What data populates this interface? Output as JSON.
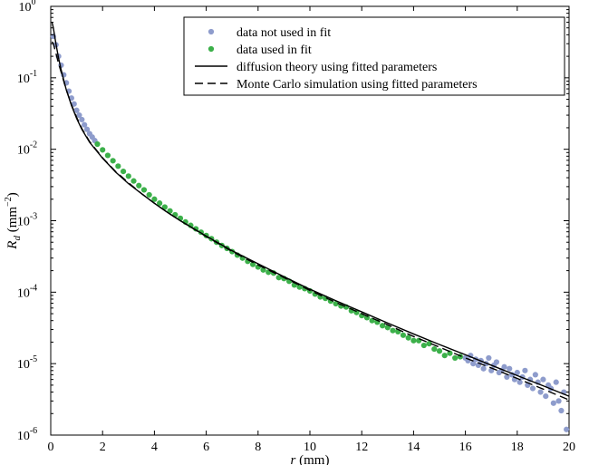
{
  "chart_data": {
    "type": "scatter",
    "title": "",
    "x_axis": {
      "label_var": "r",
      "label_unit": " (mm)",
      "min": 0,
      "max": 20,
      "ticks": [
        0,
        2,
        4,
        6,
        8,
        10,
        12,
        14,
        16,
        18,
        20
      ],
      "tick_labels": [
        "0",
        "2",
        "4",
        "6",
        "8",
        "10",
        "12",
        "14",
        "16",
        "18",
        "20"
      ]
    },
    "y_axis": {
      "label_var": "R",
      "label_sub": "d",
      "label_unit": " (mm",
      "label_exp": "−2",
      "label_close": ")",
      "scale": "log",
      "min": 1e-06,
      "max": 1,
      "tick_base": "10",
      "tick_exponents": [
        "0",
        "-1",
        "-2",
        "-3",
        "-4",
        "-5",
        "-6"
      ]
    },
    "legend": {
      "placement": "top-right",
      "entries": [
        "data not used in fit",
        "data used in fit",
        "diffusion theory using fitted parameters",
        "Monte Carlo simulation using fitted parameters"
      ]
    },
    "colors": {
      "not_used": "#8e9ccc",
      "used": "#3cb04a",
      "line": "#000000"
    },
    "series": [
      {
        "name": "data not used in fit",
        "style": "markers",
        "color": "#8e9ccc",
        "x": [
          0.1,
          0.2,
          0.3,
          0.4,
          0.5,
          0.6,
          0.7,
          0.8,
          0.9,
          1.0,
          1.1,
          1.2,
          1.3,
          1.4,
          1.5,
          1.6,
          1.7,
          16.0,
          16.1,
          16.2,
          16.3,
          16.4,
          16.5,
          16.6,
          16.7,
          16.8,
          16.9,
          17.0,
          17.1,
          17.2,
          17.3,
          17.4,
          17.5,
          17.6,
          17.7,
          17.8,
          17.9,
          18.0,
          18.1,
          18.2,
          18.3,
          18.4,
          18.5,
          18.6,
          18.7,
          18.8,
          18.9,
          19.0,
          19.1,
          19.2,
          19.3,
          19.4,
          19.5,
          19.6,
          19.7,
          19.8,
          19.9
        ],
        "y": [
          0.38,
          0.29,
          0.2,
          0.15,
          0.11,
          0.085,
          0.065,
          0.052,
          0.043,
          0.035,
          0.03,
          0.026,
          0.022,
          0.019,
          0.0165,
          0.0148,
          0.0132,
          1.2e-05,
          1.1e-05,
          1.3e-05,
          1e-05,
          1.15e-05,
          9.5e-06,
          1.1e-05,
          8.5e-06,
          1e-05,
          1.2e-05,
          8e-06,
          9.5e-06,
          1.05e-05,
          7.5e-06,
          8e-06,
          9e-06,
          6.5e-06,
          8.5e-06,
          7e-06,
          6e-06,
          7.5e-06,
          5.5e-06,
          6.5e-06,
          8e-06,
          5e-06,
          6e-06,
          4.5e-06,
          7e-06,
          5.5e-06,
          4e-06,
          6e-06,
          3.5e-06,
          5e-06,
          4.5e-06,
          2.8e-06,
          5.5e-06,
          3e-06,
          2.2e-06,
          4e-06,
          1.2e-06
        ]
      },
      {
        "name": "data used in fit",
        "style": "markers",
        "color": "#3cb04a",
        "x": [
          1.8,
          2.0,
          2.2,
          2.4,
          2.6,
          2.8,
          3.0,
          3.2,
          3.4,
          3.6,
          3.8,
          4.0,
          4.2,
          4.4,
          4.6,
          4.8,
          5.0,
          5.2,
          5.4,
          5.6,
          5.8,
          6.0,
          6.2,
          6.4,
          6.6,
          6.8,
          7.0,
          7.2,
          7.4,
          7.6,
          7.8,
          8.0,
          8.2,
          8.4,
          8.6,
          8.8,
          9.0,
          9.2,
          9.4,
          9.6,
          9.8,
          10.0,
          10.2,
          10.4,
          10.6,
          10.8,
          11.0,
          11.2,
          11.4,
          11.6,
          11.8,
          12.0,
          12.2,
          12.4,
          12.6,
          12.8,
          13.0,
          13.2,
          13.4,
          13.6,
          13.8,
          14.0,
          14.2,
          14.4,
          14.6,
          14.8,
          15.0,
          15.2,
          15.4,
          15.6,
          15.8
        ],
        "y": [
          0.0118,
          0.0098,
          0.0082,
          0.0069,
          0.0058,
          0.0049,
          0.0042,
          0.0036,
          0.0031,
          0.0027,
          0.0023,
          0.002,
          0.00176,
          0.00155,
          0.00137,
          0.00121,
          0.00108,
          0.00096,
          0.00086,
          0.00077,
          0.00069,
          0.00062,
          0.00056,
          0.0005,
          0.00045,
          0.00041,
          0.00037,
          0.00033,
          0.0003,
          0.00027,
          0.000245,
          0.000225,
          0.000205,
          0.00019,
          0.000185,
          0.00016,
          0.000155,
          0.000142,
          0.000126,
          0.000118,
          0.000112,
          0.000104,
          9.4e-05,
          8.6e-05,
          8.2e-05,
          7.5e-05,
          6.9e-05,
          6.4e-05,
          6.2e-05,
          5.5e-05,
          5.2e-05,
          4.7e-05,
          4.4e-05,
          4e-05,
          3.8e-05,
          3.4e-05,
          3.2e-05,
          2.9e-05,
          2.8e-05,
          2.5e-05,
          2.3e-05,
          2.1e-05,
          2.1e-05,
          1.8e-05,
          1.9e-05,
          1.6e-05,
          1.5e-05,
          1.3e-05,
          1.4e-05,
          1.2e-05,
          1.25e-05
        ]
      },
      {
        "name": "diffusion theory using fitted parameters",
        "style": "solid",
        "color": "#000000",
        "x": [
          0.05,
          0.1,
          0.2,
          0.3,
          0.4,
          0.5,
          0.6,
          0.8,
          1.0,
          1.2,
          1.5,
          2.0,
          2.5,
          3.0,
          3.5,
          4.0,
          4.5,
          5.0,
          6.0,
          7.0,
          8.0,
          9.0,
          10.0,
          11.0,
          12.0,
          13.0,
          14.0,
          15.0,
          16.0,
          17.0,
          18.0,
          19.0,
          20.0
        ],
        "y": [
          0.6,
          0.5,
          0.3,
          0.19,
          0.13,
          0.093,
          0.068,
          0.041,
          0.027,
          0.019,
          0.0125,
          0.0075,
          0.0048,
          0.0033,
          0.0024,
          0.00175,
          0.00131,
          0.001,
          0.00061,
          0.00038,
          0.00025,
          0.000165,
          0.00011,
          7.6e-05,
          5.3e-05,
          3.7e-05,
          2.6e-05,
          1.85e-05,
          1.33e-05,
          9.5e-06,
          6.8e-06,
          4.9e-06,
          3.5e-06
        ]
      },
      {
        "name": "Monte Carlo simulation using fitted parameters",
        "style": "dashed",
        "color": "#000000",
        "x": [
          0.05,
          0.1,
          0.2,
          0.3,
          0.4,
          0.5,
          0.6,
          0.8,
          1.0,
          1.2,
          1.5,
          2.0,
          2.5,
          3.0,
          3.5,
          4.0,
          4.5,
          5.0,
          6.0,
          7.0,
          8.0,
          9.0,
          10.0,
          11.0,
          12.0,
          13.0,
          14.0,
          15.0,
          16.0,
          17.0,
          18.0,
          19.0,
          20.0
        ],
        "y": [
          0.32,
          0.3,
          0.22,
          0.16,
          0.12,
          0.09,
          0.068,
          0.042,
          0.028,
          0.0195,
          0.0128,
          0.0076,
          0.0049,
          0.0034,
          0.0024,
          0.00176,
          0.00131,
          0.001,
          0.0006,
          0.00037,
          0.00024,
          0.00016,
          0.000106,
          7.2e-05,
          5e-05,
          3.5e-05,
          2.4e-05,
          1.7e-05,
          1.2e-05,
          8.7e-06,
          6.2e-06,
          4.4e-06,
          3.1e-06
        ]
      }
    ]
  }
}
